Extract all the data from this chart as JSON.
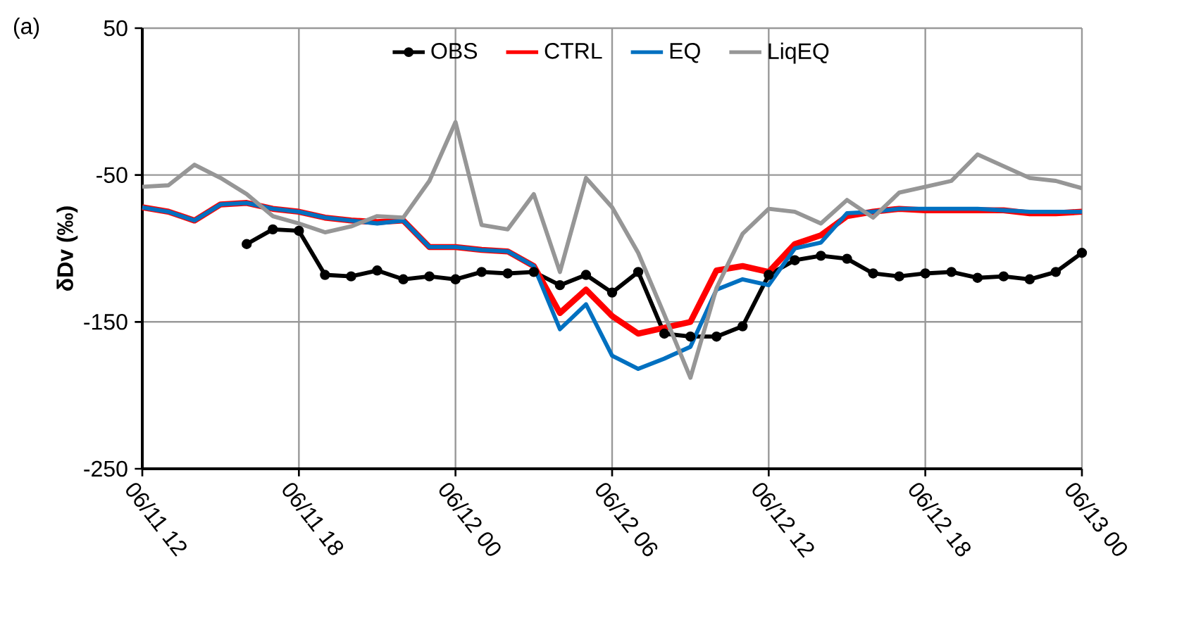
{
  "chart_data": {
    "type": "line",
    "ylabel": "δDv (‰)",
    "annotations": [
      "(a)"
    ],
    "categories": [
      "06/11 12",
      null,
      null,
      null,
      null,
      null,
      "06/11 18",
      null,
      null,
      null,
      null,
      null,
      "06/12 00",
      null,
      null,
      null,
      null,
      null,
      "06/12 06",
      null,
      null,
      null,
      null,
      null,
      "06/12 12",
      null,
      null,
      null,
      null,
      null,
      "06/12 18",
      null,
      null,
      null,
      null,
      null,
      "06/13 00"
    ],
    "ylim": [
      -250,
      50
    ],
    "yticks": [
      -250,
      -150,
      -50,
      50
    ],
    "grid": true,
    "legend": "top",
    "line_style": "solid",
    "series": [
      {
        "name": "OBS",
        "color": "#000000",
        "marker": "circle",
        "values": [
          null,
          null,
          null,
          null,
          -97,
          -87,
          -88,
          -118,
          -119,
          -115,
          -121,
          -119,
          -121,
          -116,
          -117,
          -116,
          -125,
          -118,
          -130,
          -116,
          -158,
          -160,
          -160,
          -153,
          -118,
          -108,
          -105,
          -107,
          -117,
          -119,
          -117,
          -116,
          -120,
          -119,
          -121,
          -116,
          -103
        ]
      },
      {
        "name": "CTRL",
        "color": "#ff0000",
        "marker": "none",
        "values": [
          -72,
          -75,
          -81,
          -70,
          -69,
          -73,
          -75,
          -79,
          -81,
          -82,
          -81,
          -99,
          -99,
          -101,
          -102,
          -112,
          -144,
          -128,
          -146,
          -158,
          -154,
          -150,
          -115,
          -112,
          -116,
          -97,
          -91,
          -78,
          -75,
          -73,
          -74,
          -74,
          -74,
          -74,
          -76,
          -76,
          -75
        ]
      },
      {
        "name": "EQ",
        "color": "#0070c0",
        "marker": "none",
        "values": [
          -72,
          -75,
          -81,
          -70,
          -69,
          -73,
          -75,
          -79,
          -81,
          -83,
          -81,
          -99,
          -99,
          -101,
          -102,
          -112,
          -155,
          -138,
          -173,
          -182,
          -175,
          -167,
          -128,
          -121,
          -125,
          -100,
          -96,
          -76,
          -75,
          -73,
          -73,
          -73,
          -73,
          -74,
          -75,
          -75,
          -75
        ]
      },
      {
        "name": "LiqEQ",
        "color": "#969696",
        "marker": "none",
        "values": [
          -58,
          -57,
          -43,
          -52,
          -63,
          -78,
          -83,
          -89,
          -85,
          -78,
          -79,
          -54,
          -14,
          -84,
          -87,
          -63,
          -116,
          -52,
          -72,
          -103,
          -145,
          -188,
          -127,
          -90,
          -73,
          -75,
          -83,
          -67,
          -79,
          -62,
          -58,
          -54,
          -36,
          -44,
          -52,
          -54,
          -59
        ]
      }
    ]
  }
}
